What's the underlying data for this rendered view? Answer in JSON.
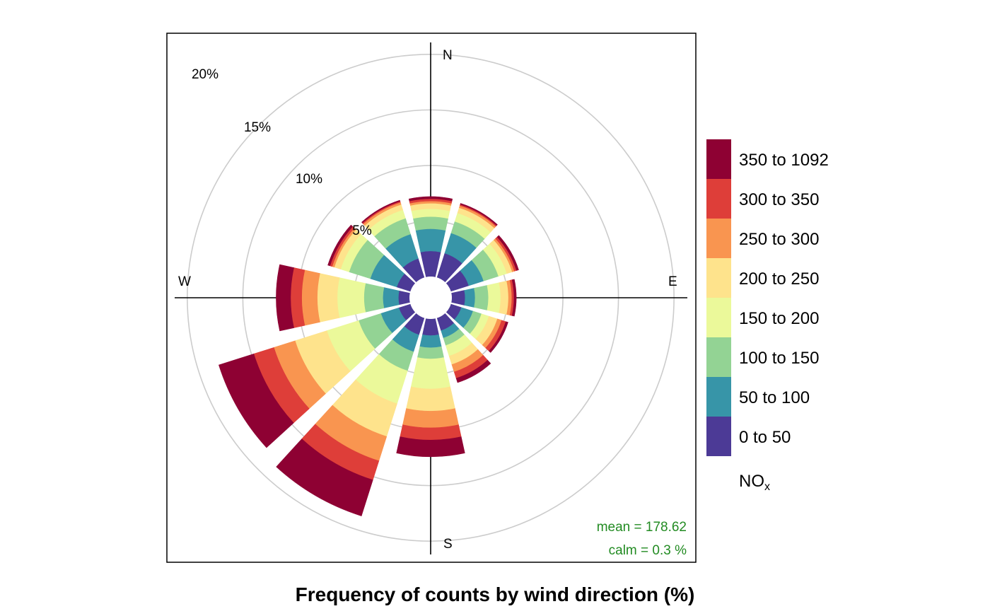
{
  "chart_data": {
    "type": "polar-stacked-bar",
    "title": "",
    "xlabel": "Frequency of counts by wind direction (%)",
    "directions_deg": [
      0,
      30,
      60,
      90,
      120,
      150,
      180,
      210,
      240,
      270,
      300,
      330
    ],
    "cardinals": {
      "north": "N",
      "east": "E",
      "south": "S",
      "west": "W"
    },
    "rings": {
      "values": [
        5,
        10,
        15,
        20
      ],
      "labels": [
        "5%",
        "10%",
        "15%",
        "20%"
      ]
    },
    "max_radius": 21.2,
    "legend": {
      "title_main": "NO",
      "title_sub": "x",
      "bins": [
        "0 to 50",
        "50 to 100",
        "100 to 150",
        "150 to 200",
        "200 to 250",
        "250 to 300",
        "300 to 350",
        "350 to 1092"
      ],
      "colors": [
        "#4C3A96",
        "#3795A8",
        "#93D394",
        "#EBF99A",
        "#FEE38C",
        "#F99550",
        "#DE3E39",
        "#8E0133"
      ]
    },
    "series_cumulative": [
      [
        2.3,
        4.3,
        5.4,
        6.1,
        6.6,
        6.8,
        7.0,
        7.2
      ],
      [
        2.3,
        4.2,
        5.3,
        6.1,
        6.6,
        6.8,
        6.9,
        7.0
      ],
      [
        1.7,
        3.1,
        4.5,
        5.3,
        5.8,
        6.0,
        6.2,
        6.4
      ],
      [
        1.2,
        2.1,
        3.3,
        4.4,
        5.1,
        5.4,
        5.6,
        5.8
      ],
      [
        1.0,
        2.1,
        2.9,
        3.6,
        4.4,
        4.8,
        5.2,
        5.4
      ],
      [
        1.2,
        1.9,
        2.6,
        3.6,
        4.4,
        5.1,
        5.7,
        6.1
      ],
      [
        1.5,
        2.6,
        3.6,
        6.3,
        8.3,
        9.8,
        10.9,
        12.4
      ],
      [
        1.6,
        3.2,
        5.0,
        8.1,
        11.2,
        13.5,
        15.3,
        18.7
      ],
      [
        1.1,
        2.8,
        4.9,
        7.9,
        10.9,
        12.9,
        14.8,
        18.1
      ],
      [
        1.0,
        2.4,
        4.1,
        6.5,
        8.3,
        9.7,
        10.7,
        12.0
      ],
      [
        1.3,
        3.8,
        5.8,
        6.6,
        7.2,
        7.4,
        7.6,
        7.8
      ],
      [
        1.8,
        4.1,
        5.6,
        6.4,
        6.9,
        7.1,
        7.2,
        7.3
      ]
    ],
    "statistics": {
      "mean_label": "mean  =  178.62",
      "calm_label": "calm =  0.3 %"
    }
  }
}
